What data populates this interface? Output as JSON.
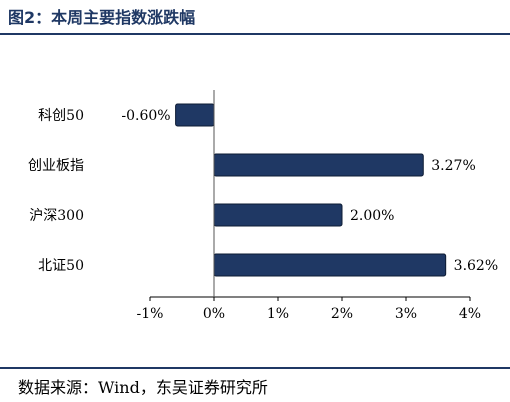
{
  "header": {
    "title": "图2：本周主要指数涨跌幅"
  },
  "footer": {
    "source": "数据来源：Wind，东吴证券研究所"
  },
  "chart_data": {
    "type": "bar",
    "orientation": "horizontal",
    "categories": [
      "科创50",
      "创业板指",
      "沪深300",
      "北证50"
    ],
    "values": [
      -0.6,
      3.27,
      2.0,
      3.62
    ],
    "value_labels": [
      "-0.60%",
      "3.27%",
      "2.00%",
      "3.62%"
    ],
    "xlim": [
      -1,
      4
    ],
    "xticks": [
      -1,
      0,
      1,
      2,
      3,
      4
    ],
    "xtick_labels": [
      "-1%",
      "0%",
      "1%",
      "2%",
      "3%",
      "4%"
    ],
    "bar_color": "#1f3864",
    "grid": false
  }
}
